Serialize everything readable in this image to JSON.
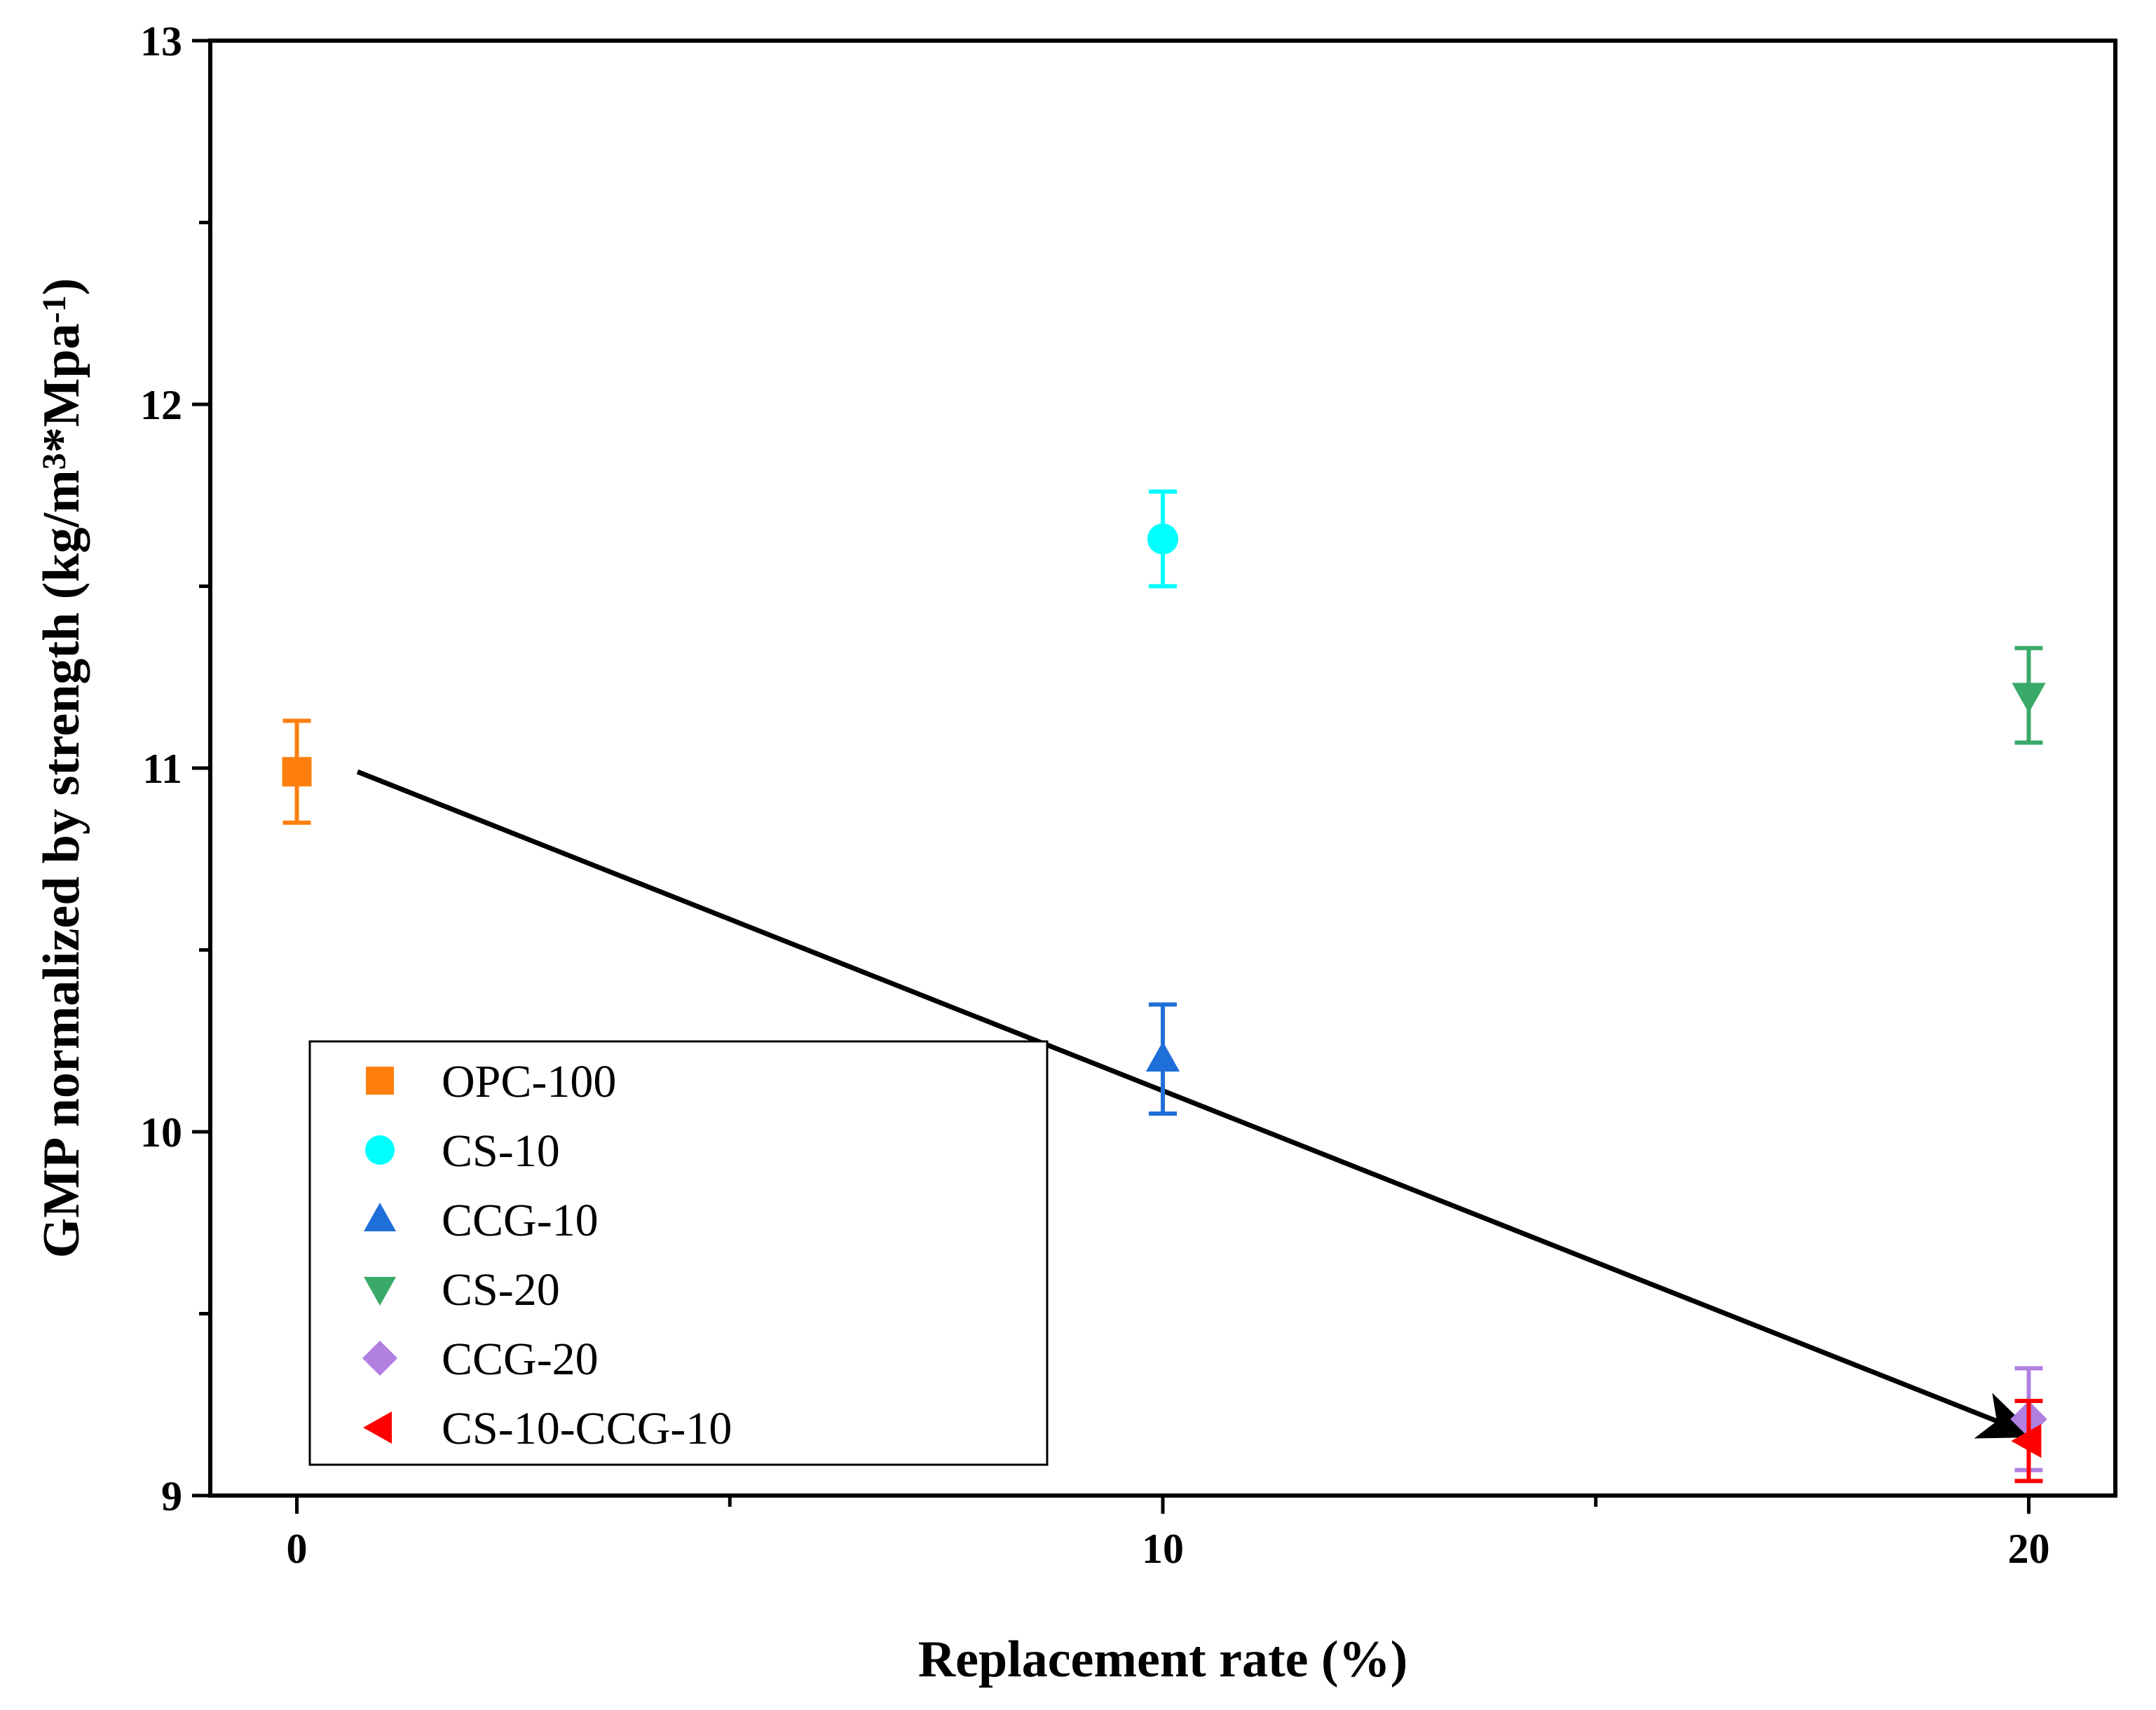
{
  "chart_data": {
    "type": "scatter",
    "title": "",
    "xlabel": "Replacement rate (%)",
    "ylabel": "GMP normalized by strength (kg/m3*Mpa-1)",
    "ylabel_parts": [
      "GMP normalized by strength (kg/m",
      "3",
      "*Mpa",
      "-1",
      ")"
    ],
    "xlim": [
      -1,
      21
    ],
    "ylim": [
      9,
      13
    ],
    "xticks": [
      0,
      10,
      20
    ],
    "xtick_labels": [
      "0",
      "10",
      "20"
    ],
    "yticks": [
      9,
      10,
      11,
      12,
      13
    ],
    "ytick_labels": [
      "9",
      "10",
      "11",
      "12",
      "13"
    ],
    "x_minor_ticks": [
      5,
      15
    ],
    "y_minor_ticks": [
      9.5,
      10.5,
      11.5,
      12.5
    ],
    "grid": false,
    "legend_position": "bottom-left",
    "series": [
      {
        "name": "OPC-100",
        "marker": "square",
        "color": "#ff7f0e",
        "x": 0,
        "y": 10.99,
        "err": 0.14
      },
      {
        "name": "CS-10",
        "marker": "circle",
        "color": "#00ffff",
        "x": 10,
        "y": 11.63,
        "err": 0.13
      },
      {
        "name": "CCG-10",
        "marker": "triangle-up",
        "color": "#1f6fd8",
        "x": 10,
        "y": 10.2,
        "err": 0.15
      },
      {
        "name": "CS-20",
        "marker": "triangle-down",
        "color": "#3aaa6a",
        "x": 20,
        "y": 11.2,
        "err": 0.13
      },
      {
        "name": "CCG-20",
        "marker": "diamond",
        "color": "#b07fe0",
        "x": 20,
        "y": 9.21,
        "err": 0.14
      },
      {
        "name": "CS-10-CCG-10",
        "marker": "triangle-left",
        "color": "#ff0000",
        "x": 20,
        "y": 9.15,
        "err": 0.11
      }
    ],
    "annotations": [
      {
        "type": "arrow",
        "from": [
          0.7,
          10.99
        ],
        "to": [
          20,
          9.17
        ],
        "color": "#000000"
      }
    ]
  }
}
